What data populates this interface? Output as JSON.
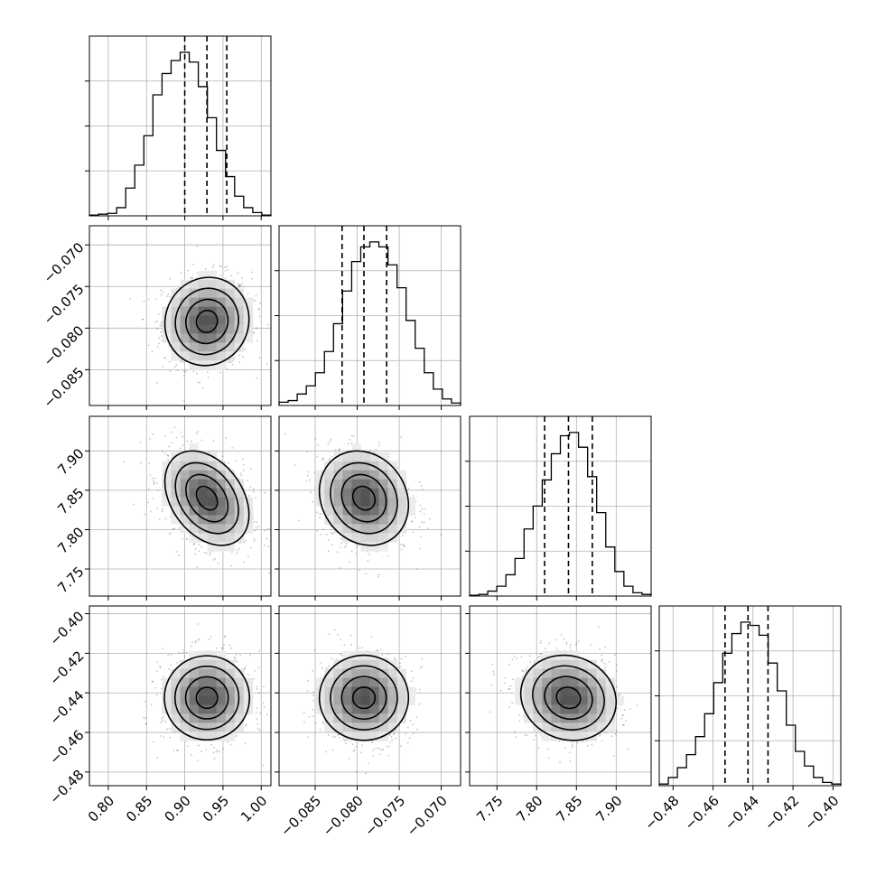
{
  "chart_data": {
    "type": "corner",
    "grid": true,
    "parameters": [
      {
        "name": "",
        "ticks": [
          "0.80",
          "0.85",
          "0.90",
          "0.95",
          "1.00"
        ],
        "tick_values": [
          0.8,
          0.85,
          0.9,
          0.95,
          1.0
        ],
        "range": [
          0.7753,
          1.0127
        ],
        "quantiles": [
          0.9,
          0.929,
          0.955
        ],
        "histogram": [
          0.005,
          0.01,
          0.015,
          0.05,
          0.17,
          0.31,
          0.49,
          0.74,
          0.87,
          0.95,
          1.0,
          0.94,
          0.79,
          0.6,
          0.4,
          0.24,
          0.12,
          0.05,
          0.02,
          0.005
        ]
      },
      {
        "name": "",
        "ticks": [
          "−0.085",
          "−0.080",
          "−0.075",
          "−0.070"
        ],
        "tick_values": [
          -0.085,
          -0.08,
          -0.075,
          -0.07
        ],
        "range": [
          -0.0893,
          -0.0677
        ],
        "quantiles": [
          -0.0818,
          -0.0792,
          -0.0765
        ],
        "histogram": [
          0.02,
          0.03,
          0.07,
          0.12,
          0.2,
          0.33,
          0.5,
          0.7,
          0.88,
          0.97,
          1.0,
          0.97,
          0.86,
          0.72,
          0.52,
          0.35,
          0.2,
          0.1,
          0.04,
          0.015
        ]
      },
      {
        "name": "",
        "ticks": [
          "7.75",
          "7.80",
          "7.85",
          "7.90"
        ],
        "tick_values": [
          7.75,
          7.8,
          7.85,
          7.9
        ],
        "range": [
          7.7156,
          7.944
        ],
        "quantiles": [
          7.81,
          7.84,
          7.87
        ],
        "histogram": [
          0.005,
          0.01,
          0.03,
          0.06,
          0.13,
          0.23,
          0.41,
          0.55,
          0.71,
          0.87,
          0.98,
          1.0,
          0.91,
          0.73,
          0.51,
          0.3,
          0.15,
          0.06,
          0.02,
          0.01
        ]
      },
      {
        "name": "",
        "ticks": [
          "−0.48",
          "−0.46",
          "−0.44",
          "−0.42",
          "−0.40"
        ],
        "tick_values": [
          -0.48,
          -0.46,
          -0.44,
          -0.42,
          -0.4
        ],
        "range": [
          -0.4869,
          -0.3961
        ],
        "quantiles": [
          -0.454,
          -0.4425,
          -0.4325
        ],
        "histogram": [
          0.01,
          0.05,
          0.11,
          0.19,
          0.3,
          0.44,
          0.63,
          0.81,
          0.93,
          1.0,
          0.98,
          0.92,
          0.75,
          0.58,
          0.37,
          0.21,
          0.12,
          0.05,
          0.02,
          0.01
        ]
      }
    ],
    "pair_correlations": {
      "1-0": 0.05,
      "2-0": -0.35,
      "2-1": -0.15,
      "3-0": 0.0,
      "3-1": 0.0,
      "3-2": -0.1
    },
    "colors": {
      "axes": "#000000",
      "grid": "#b0b0b0",
      "scatter": "#555555",
      "histogram_line": "#000000",
      "contour": "#000000"
    }
  }
}
